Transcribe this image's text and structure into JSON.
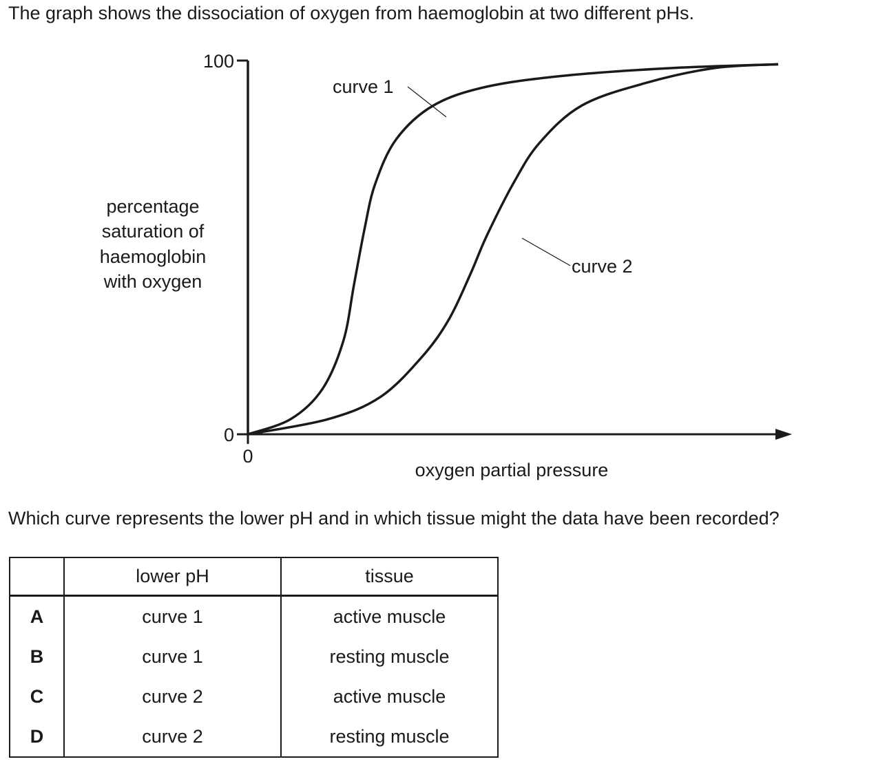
{
  "intro": "The graph shows the dissociation of oxygen from haemoglobin at two different pHs.",
  "question": "Which curve represents the lower pH and in which tissue might the data have been recorded?",
  "chart_data": {
    "type": "line",
    "xlabel": "oxygen partial pressure",
    "ylabel_lines": [
      "percentage",
      "saturation of",
      "haemoglobin",
      "with oxygen"
    ],
    "x_tick_labels": [
      "0"
    ],
    "y_tick_labels": [
      "0",
      "100"
    ],
    "ylim": [
      0,
      100
    ],
    "xlim": [
      0,
      100
    ],
    "series": [
      {
        "name": "curve 1",
        "x": [
          0,
          8,
          14,
          18,
          20,
          22,
          24,
          28,
          35,
          45,
          60,
          80,
          100
        ],
        "y": [
          0,
          4,
          12,
          25,
          40,
          55,
          67,
          79,
          88,
          93,
          96,
          98,
          99
        ]
      },
      {
        "name": "curve 2",
        "x": [
          0,
          15,
          25,
          33,
          38,
          42,
          45,
          50,
          55,
          63,
          75,
          88,
          100
        ],
        "y": [
          0,
          4,
          10,
          21,
          31,
          43,
          53,
          67,
          78,
          88,
          94,
          98,
          99
        ]
      }
    ]
  },
  "table": {
    "headers": [
      "",
      "lower pH",
      "tissue"
    ],
    "rows": [
      [
        "A",
        "curve 1",
        "active muscle"
      ],
      [
        "B",
        "curve 1",
        "resting muscle"
      ],
      [
        "C",
        "curve 2",
        "active muscle"
      ],
      [
        "D",
        "curve 2",
        "resting muscle"
      ]
    ]
  }
}
